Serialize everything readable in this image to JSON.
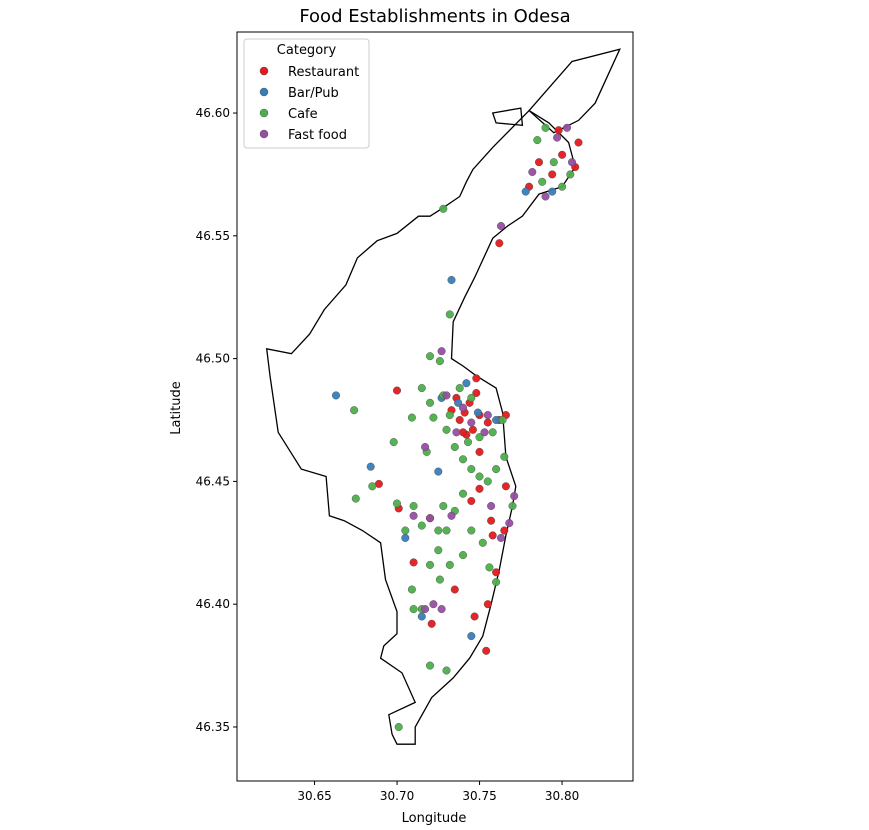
{
  "chart_data": {
    "type": "scatter",
    "title": "Food Establishments in Odesa",
    "xlabel": "Longitude",
    "ylabel": "Latitude",
    "xlim": [
      30.603,
      30.843
    ],
    "ylim": [
      46.328,
      46.633
    ],
    "xticks": [
      "30.65",
      "30.70",
      "30.75",
      "30.80"
    ],
    "yticks": [
      "46.35",
      "46.40",
      "46.45",
      "46.50",
      "46.55",
      "46.60"
    ],
    "grid": false,
    "legend": {
      "title": "Category",
      "placement": "top-left",
      "entries": [
        "Restaurant",
        "Bar/Pub",
        "Cafe",
        "Fast food"
      ]
    },
    "colors": {
      "Restaurant": "#e41a1c",
      "Bar/Pub": "#377eb8",
      "Cafe": "#4daf4a",
      "Fast food": "#984ea3",
      "boundary": "#000000"
    },
    "boundary": [
      [
        30.7,
        46.343
      ],
      [
        30.711,
        46.343
      ],
      [
        30.711,
        46.35
      ],
      [
        30.721,
        46.362
      ],
      [
        30.734,
        46.37
      ],
      [
        30.744,
        46.378
      ],
      [
        30.752,
        46.387
      ],
      [
        30.757,
        46.4
      ],
      [
        30.762,
        46.414
      ],
      [
        30.766,
        46.428
      ],
      [
        30.77,
        46.44
      ],
      [
        30.772,
        46.448
      ],
      [
        30.766,
        46.46
      ],
      [
        30.764,
        46.478
      ],
      [
        30.76,
        46.488
      ],
      [
        30.748,
        46.493
      ],
      [
        30.74,
        46.497
      ],
      [
        30.733,
        46.5
      ],
      [
        30.734,
        46.515
      ],
      [
        30.741,
        46.525
      ],
      [
        30.747,
        46.533
      ],
      [
        30.758,
        46.549
      ],
      [
        30.767,
        46.554
      ],
      [
        30.776,
        46.558
      ],
      [
        30.786,
        46.567
      ],
      [
        30.8,
        46.57
      ],
      [
        30.808,
        46.578
      ],
      [
        30.804,
        46.588
      ],
      [
        30.792,
        46.596
      ],
      [
        30.78,
        46.601
      ],
      [
        30.758,
        46.586
      ],
      [
        30.746,
        46.577
      ],
      [
        30.742,
        46.572
      ],
      [
        30.738,
        46.566
      ],
      [
        30.727,
        46.561
      ],
      [
        30.72,
        46.558
      ],
      [
        30.713,
        46.558
      ],
      [
        30.7,
        46.551
      ],
      [
        30.688,
        46.548
      ],
      [
        30.676,
        46.541
      ],
      [
        30.669,
        46.53
      ],
      [
        30.656,
        46.52
      ],
      [
        30.647,
        46.51
      ],
      [
        30.636,
        46.502
      ],
      [
        30.621,
        46.504
      ],
      [
        30.623,
        46.493
      ],
      [
        30.628,
        46.47
      ],
      [
        30.642,
        46.455
      ],
      [
        30.657,
        46.452
      ],
      [
        30.659,
        46.436
      ],
      [
        30.668,
        46.434
      ],
      [
        30.679,
        46.43
      ],
      [
        30.69,
        46.425
      ],
      [
        30.693,
        46.41
      ],
      [
        30.7,
        46.397
      ],
      [
        30.7,
        46.388
      ],
      [
        30.692,
        46.383
      ],
      [
        30.69,
        46.378
      ],
      [
        30.703,
        46.372
      ],
      [
        30.711,
        46.36
      ],
      [
        30.695,
        46.355
      ],
      [
        30.697,
        46.347
      ],
      [
        30.7,
        46.343
      ]
    ],
    "boundary_north": [
      [
        30.78,
        46.601
      ],
      [
        30.806,
        46.621
      ],
      [
        30.835,
        46.626
      ],
      [
        30.82,
        46.604
      ],
      [
        30.81,
        46.597
      ],
      [
        30.795,
        46.592
      ],
      [
        30.78,
        46.601
      ]
    ],
    "boundary_island": [
      [
        30.758,
        46.6
      ],
      [
        30.775,
        46.602
      ],
      [
        30.776,
        46.595
      ],
      [
        30.76,
        46.596
      ],
      [
        30.758,
        46.6
      ]
    ],
    "series": [
      {
        "name": "Restaurant",
        "points": [
          [
            30.741,
            46.478
          ],
          [
            30.744,
            46.482
          ],
          [
            30.738,
            46.475
          ],
          [
            30.746,
            46.471
          ],
          [
            30.733,
            46.479
          ],
          [
            30.75,
            46.477
          ],
          [
            30.748,
            46.486
          ],
          [
            30.755,
            46.474
          ],
          [
            30.742,
            46.469
          ],
          [
            30.736,
            46.484
          ],
          [
            30.762,
            46.475
          ],
          [
            30.766,
            46.477
          ],
          [
            30.748,
            46.492
          ],
          [
            30.7,
            46.487
          ],
          [
            30.689,
            46.449
          ],
          [
            30.701,
            46.439
          ],
          [
            30.71,
            46.417
          ],
          [
            30.72,
            46.435
          ],
          [
            30.75,
            46.447
          ],
          [
            30.745,
            46.442
          ],
          [
            30.757,
            46.434
          ],
          [
            30.758,
            46.428
          ],
          [
            30.765,
            46.43
          ],
          [
            30.766,
            46.448
          ],
          [
            30.735,
            46.406
          ],
          [
            30.721,
            46.392
          ],
          [
            30.747,
            46.395
          ],
          [
            30.754,
            46.381
          ],
          [
            30.755,
            46.4
          ],
          [
            30.76,
            46.413
          ],
          [
            30.78,
            46.57
          ],
          [
            30.786,
            46.58
          ],
          [
            30.794,
            46.575
          ],
          [
            30.8,
            46.583
          ],
          [
            30.808,
            46.578
          ],
          [
            30.81,
            46.588
          ],
          [
            30.798,
            46.593
          ],
          [
            30.762,
            46.547
          ],
          [
            30.74,
            46.47
          ],
          [
            30.75,
            46.462
          ]
        ]
      },
      {
        "name": "Bar/Pub",
        "points": [
          [
            30.663,
            46.485
          ],
          [
            30.684,
            46.456
          ],
          [
            30.705,
            46.427
          ],
          [
            30.733,
            46.532
          ],
          [
            30.745,
            46.387
          ],
          [
            30.778,
            46.568
          ],
          [
            30.727,
            46.484
          ],
          [
            30.742,
            46.49
          ],
          [
            30.749,
            46.478
          ],
          [
            30.715,
            46.395
          ],
          [
            30.737,
            46.482
          ],
          [
            30.76,
            46.475
          ],
          [
            30.794,
            46.568
          ],
          [
            30.725,
            46.454
          ]
        ]
      },
      {
        "name": "Cafe",
        "points": [
          [
            30.728,
            46.561
          ],
          [
            30.732,
            46.518
          ],
          [
            30.72,
            46.501
          ],
          [
            30.726,
            46.499
          ],
          [
            30.715,
            46.488
          ],
          [
            30.72,
            46.482
          ],
          [
            30.722,
            46.476
          ],
          [
            30.73,
            46.471
          ],
          [
            30.735,
            46.464
          ],
          [
            30.74,
            46.459
          ],
          [
            30.745,
            46.455
          ],
          [
            30.75,
            46.452
          ],
          [
            30.755,
            46.45
          ],
          [
            30.76,
            46.455
          ],
          [
            30.765,
            46.46
          ],
          [
            30.74,
            46.445
          ],
          [
            30.735,
            46.438
          ],
          [
            30.73,
            46.43
          ],
          [
            30.725,
            46.422
          ],
          [
            30.72,
            46.416
          ],
          [
            30.715,
            46.432
          ],
          [
            30.71,
            46.44
          ],
          [
            30.705,
            46.43
          ],
          [
            30.7,
            46.441
          ],
          [
            30.674,
            46.479
          ],
          [
            30.675,
            46.443
          ],
          [
            30.685,
            46.448
          ],
          [
            30.698,
            46.466
          ],
          [
            30.709,
            46.476
          ],
          [
            30.718,
            46.462
          ],
          [
            30.73,
            46.373
          ],
          [
            30.72,
            46.375
          ],
          [
            30.701,
            46.35
          ],
          [
            30.709,
            46.406
          ],
          [
            30.71,
            46.398
          ],
          [
            30.715,
            46.398
          ],
          [
            30.726,
            46.41
          ],
          [
            30.732,
            46.416
          ],
          [
            30.74,
            46.42
          ],
          [
            30.745,
            46.43
          ],
          [
            30.752,
            46.425
          ],
          [
            30.756,
            46.415
          ],
          [
            30.76,
            46.409
          ],
          [
            30.77,
            46.44
          ],
          [
            30.785,
            46.589
          ],
          [
            30.79,
            46.594
          ],
          [
            30.8,
            46.57
          ],
          [
            30.805,
            46.575
          ],
          [
            30.795,
            46.58
          ],
          [
            30.788,
            46.572
          ],
          [
            30.745,
            46.484
          ],
          [
            30.738,
            46.488
          ],
          [
            30.732,
            46.477
          ],
          [
            30.728,
            46.485
          ],
          [
            30.75,
            46.468
          ],
          [
            30.758,
            46.47
          ],
          [
            30.764,
            46.475
          ],
          [
            30.743,
            46.466
          ],
          [
            30.725,
            46.43
          ],
          [
            30.728,
            46.44
          ]
        ]
      },
      {
        "name": "Fast food",
        "points": [
          [
            30.727,
            46.503
          ],
          [
            30.73,
            46.485
          ],
          [
            30.745,
            46.474
          ],
          [
            30.736,
            46.47
          ],
          [
            30.755,
            46.477
          ],
          [
            30.717,
            46.464
          ],
          [
            30.71,
            46.436
          ],
          [
            30.717,
            46.398
          ],
          [
            30.722,
            46.4
          ],
          [
            30.727,
            46.398
          ],
          [
            30.757,
            46.44
          ],
          [
            30.768,
            46.433
          ],
          [
            30.771,
            46.444
          ],
          [
            30.763,
            46.427
          ],
          [
            30.733,
            46.436
          ],
          [
            30.782,
            46.576
          ],
          [
            30.79,
            46.566
          ],
          [
            30.797,
            46.59
          ],
          [
            30.803,
            46.594
          ],
          [
            30.806,
            46.58
          ],
          [
            30.763,
            46.554
          ],
          [
            30.753,
            46.47
          ],
          [
            30.74,
            46.48
          ],
          [
            30.72,
            46.435
          ]
        ]
      }
    ]
  }
}
